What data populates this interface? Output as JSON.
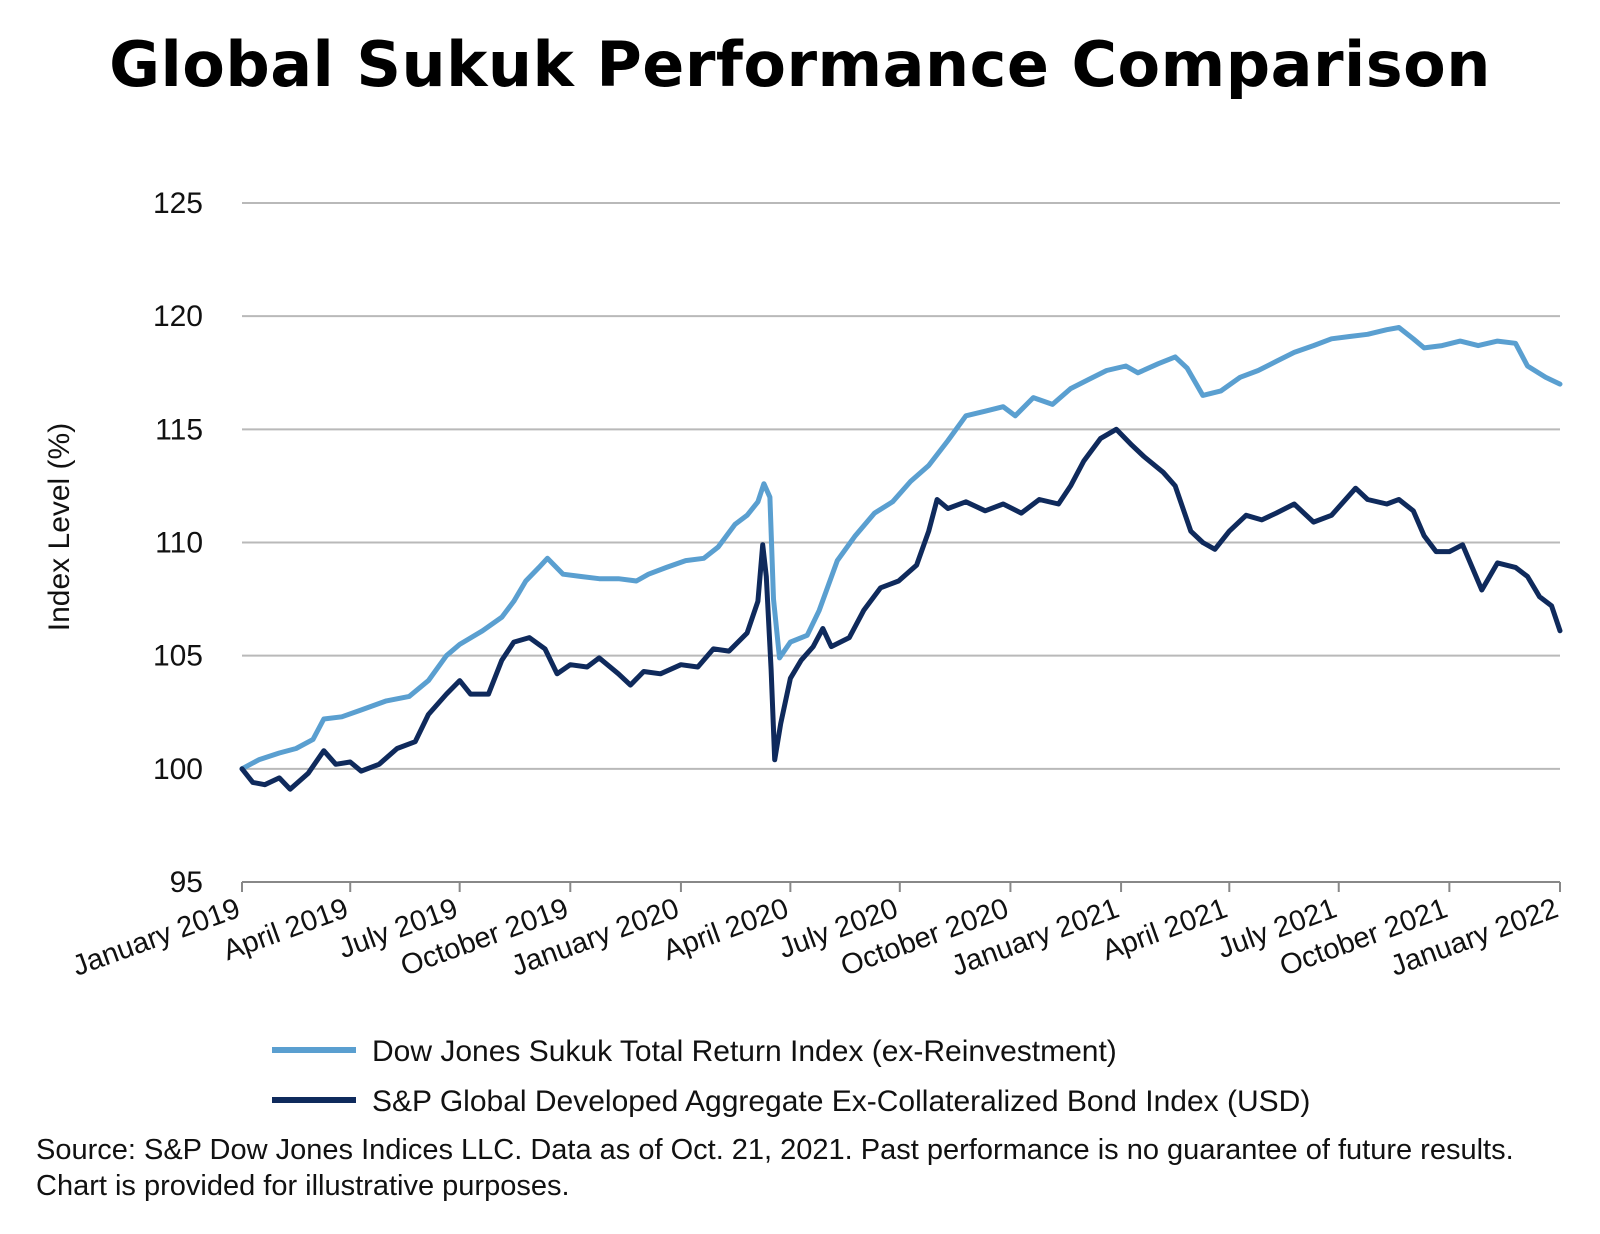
{
  "title": "Global Sukuk Performance Comparison",
  "source_note": "Source: S&P Dow Jones Indices LLC.  Data as of Oct. 21, 2021.  Past performance is no guarantee of future results.  Chart is provided for illustrative purposes.",
  "colors": {
    "series_light": "#5a9fd0",
    "series_dark": "#0f2a5c",
    "grid": "#b9b9b9",
    "axis": "#888888"
  },
  "chart_data": {
    "type": "line",
    "title": "Global Sukuk Performance Comparison",
    "ylabel": "Index Level (%)",
    "xlabel": "",
    "ylim": [
      95,
      125
    ],
    "yticks": [
      95,
      100,
      105,
      110,
      115,
      120,
      125
    ],
    "xlim": [
      "2019-01-01",
      "2022-01-01"
    ],
    "xticks": [
      "2019-01-01",
      "2019-04-01",
      "2019-07-01",
      "2019-10-01",
      "2020-01-01",
      "2020-04-01",
      "2020-07-01",
      "2020-10-01",
      "2021-01-01",
      "2021-04-01",
      "2021-07-01",
      "2021-10-01",
      "2022-01-01"
    ],
    "xtick_labels": [
      "January 2019",
      "April 2019",
      "July 2019",
      "October 2019",
      "January 2020",
      "April 2020",
      "July 2020",
      "October 2020",
      "January 2021",
      "April 2021",
      "July 2021",
      "October 2021",
      "January 2022"
    ],
    "grid": "horizontal",
    "legend_position": "bottom",
    "series": [
      {
        "name": "Dow Jones Sukuk Total Return Index (ex-Reinvestment)",
        "color": "#5a9fd0",
        "points": [
          [
            "2019-01-01",
            100.0
          ],
          [
            "2019-01-15",
            100.4
          ],
          [
            "2019-02-01",
            100.7
          ],
          [
            "2019-02-15",
            100.9
          ],
          [
            "2019-03-01",
            101.3
          ],
          [
            "2019-03-10",
            102.2
          ],
          [
            "2019-03-25",
            102.3
          ],
          [
            "2019-04-10",
            102.6
          ],
          [
            "2019-05-01",
            103.0
          ],
          [
            "2019-05-20",
            103.2
          ],
          [
            "2019-06-05",
            103.9
          ],
          [
            "2019-06-20",
            105.0
          ],
          [
            "2019-07-01",
            105.5
          ],
          [
            "2019-07-20",
            106.1
          ],
          [
            "2019-08-05",
            106.7
          ],
          [
            "2019-08-15",
            107.4
          ],
          [
            "2019-08-25",
            108.3
          ],
          [
            "2019-09-05",
            108.9
          ],
          [
            "2019-09-12",
            109.3
          ],
          [
            "2019-09-25",
            108.6
          ],
          [
            "2019-10-10",
            108.5
          ],
          [
            "2019-10-25",
            108.4
          ],
          [
            "2019-11-10",
            108.4
          ],
          [
            "2019-11-25",
            108.3
          ],
          [
            "2019-12-05",
            108.6
          ],
          [
            "2019-12-20",
            108.9
          ],
          [
            "2020-01-05",
            109.2
          ],
          [
            "2020-01-20",
            109.3
          ],
          [
            "2020-02-01",
            109.8
          ],
          [
            "2020-02-15",
            110.8
          ],
          [
            "2020-02-25",
            111.2
          ],
          [
            "2020-03-05",
            111.8
          ],
          [
            "2020-03-10",
            112.6
          ],
          [
            "2020-03-15",
            112.0
          ],
          [
            "2020-03-18",
            107.5
          ],
          [
            "2020-03-23",
            104.9
          ],
          [
            "2020-04-01",
            105.6
          ],
          [
            "2020-04-15",
            105.9
          ],
          [
            "2020-04-25",
            107.0
          ],
          [
            "2020-05-10",
            109.2
          ],
          [
            "2020-05-25",
            110.3
          ],
          [
            "2020-06-10",
            111.3
          ],
          [
            "2020-06-25",
            111.8
          ],
          [
            "2020-07-10",
            112.7
          ],
          [
            "2020-07-25",
            113.4
          ],
          [
            "2020-08-10",
            114.5
          ],
          [
            "2020-08-25",
            115.6
          ],
          [
            "2020-09-10",
            115.8
          ],
          [
            "2020-09-25",
            116.0
          ],
          [
            "2020-10-05",
            115.6
          ],
          [
            "2020-10-20",
            116.4
          ],
          [
            "2020-11-05",
            116.1
          ],
          [
            "2020-11-20",
            116.8
          ],
          [
            "2020-12-05",
            117.2
          ],
          [
            "2020-12-20",
            117.6
          ],
          [
            "2021-01-05",
            117.8
          ],
          [
            "2021-01-15",
            117.5
          ],
          [
            "2021-02-01",
            117.9
          ],
          [
            "2021-02-15",
            118.2
          ],
          [
            "2021-02-25",
            117.7
          ],
          [
            "2021-03-10",
            116.5
          ],
          [
            "2021-03-25",
            116.7
          ],
          [
            "2021-04-10",
            117.3
          ],
          [
            "2021-04-25",
            117.6
          ],
          [
            "2021-05-10",
            118.0
          ],
          [
            "2021-05-25",
            118.4
          ],
          [
            "2021-06-10",
            118.7
          ],
          [
            "2021-06-25",
            119.0
          ],
          [
            "2021-07-10",
            119.1
          ],
          [
            "2021-07-25",
            119.2
          ],
          [
            "2021-08-10",
            119.4
          ],
          [
            "2021-08-20",
            119.5
          ],
          [
            "2021-09-01",
            119.0
          ],
          [
            "2021-09-10",
            118.6
          ],
          [
            "2021-09-25",
            118.7
          ],
          [
            "2021-10-10",
            118.9
          ],
          [
            "2021-10-25",
            118.7
          ],
          [
            "2021-11-10",
            118.9
          ],
          [
            "2021-11-25",
            118.8
          ],
          [
            "2021-12-05",
            117.8
          ],
          [
            "2021-12-20",
            117.3
          ],
          [
            "2022-01-01",
            117.0
          ]
        ]
      },
      {
        "name": "S&P Global Developed Aggregate Ex-Collateralized Bond Index (USD)",
        "color": "#0f2a5c",
        "points": [
          [
            "2019-01-01",
            100.0
          ],
          [
            "2019-01-10",
            99.4
          ],
          [
            "2019-01-20",
            99.3
          ],
          [
            "2019-02-01",
            99.6
          ],
          [
            "2019-02-10",
            99.1
          ],
          [
            "2019-02-25",
            99.8
          ],
          [
            "2019-03-10",
            100.8
          ],
          [
            "2019-03-20",
            100.2
          ],
          [
            "2019-04-01",
            100.3
          ],
          [
            "2019-04-10",
            99.9
          ],
          [
            "2019-04-25",
            100.2
          ],
          [
            "2019-05-10",
            100.9
          ],
          [
            "2019-05-25",
            101.2
          ],
          [
            "2019-06-05",
            102.4
          ],
          [
            "2019-06-20",
            103.3
          ],
          [
            "2019-07-01",
            103.9
          ],
          [
            "2019-07-10",
            103.3
          ],
          [
            "2019-07-25",
            103.3
          ],
          [
            "2019-08-05",
            104.8
          ],
          [
            "2019-08-15",
            105.6
          ],
          [
            "2019-08-28",
            105.8
          ],
          [
            "2019-09-10",
            105.3
          ],
          [
            "2019-09-20",
            104.2
          ],
          [
            "2019-10-01",
            104.6
          ],
          [
            "2019-10-15",
            104.5
          ],
          [
            "2019-10-25",
            104.9
          ],
          [
            "2019-11-10",
            104.2
          ],
          [
            "2019-11-20",
            103.7
          ],
          [
            "2019-12-01",
            104.3
          ],
          [
            "2019-12-15",
            104.2
          ],
          [
            "2020-01-01",
            104.6
          ],
          [
            "2020-01-15",
            104.5
          ],
          [
            "2020-01-28",
            105.3
          ],
          [
            "2020-02-10",
            105.2
          ],
          [
            "2020-02-25",
            106.0
          ],
          [
            "2020-03-05",
            107.4
          ],
          [
            "2020-03-09",
            109.9
          ],
          [
            "2020-03-12",
            108.5
          ],
          [
            "2020-03-16",
            104.4
          ],
          [
            "2020-03-19",
            100.4
          ],
          [
            "2020-03-24",
            102.0
          ],
          [
            "2020-04-01",
            104.0
          ],
          [
            "2020-04-10",
            104.8
          ],
          [
            "2020-04-20",
            105.4
          ],
          [
            "2020-04-28",
            106.2
          ],
          [
            "2020-05-05",
            105.4
          ],
          [
            "2020-05-20",
            105.8
          ],
          [
            "2020-06-01",
            107.0
          ],
          [
            "2020-06-15",
            108.0
          ],
          [
            "2020-06-30",
            108.3
          ],
          [
            "2020-07-15",
            109.0
          ],
          [
            "2020-07-25",
            110.5
          ],
          [
            "2020-08-01",
            111.9
          ],
          [
            "2020-08-10",
            111.5
          ],
          [
            "2020-08-25",
            111.8
          ],
          [
            "2020-09-10",
            111.4
          ],
          [
            "2020-09-25",
            111.7
          ],
          [
            "2020-10-10",
            111.3
          ],
          [
            "2020-10-25",
            111.9
          ],
          [
            "2020-11-10",
            111.7
          ],
          [
            "2020-11-20",
            112.5
          ],
          [
            "2020-12-01",
            113.6
          ],
          [
            "2020-12-15",
            114.6
          ],
          [
            "2020-12-28",
            115.0
          ],
          [
            "2021-01-10",
            114.3
          ],
          [
            "2021-01-20",
            113.8
          ],
          [
            "2021-02-05",
            113.1
          ],
          [
            "2021-02-15",
            112.5
          ],
          [
            "2021-02-28",
            110.5
          ],
          [
            "2021-03-10",
            110.0
          ],
          [
            "2021-03-20",
            109.7
          ],
          [
            "2021-04-01",
            110.5
          ],
          [
            "2021-04-15",
            111.2
          ],
          [
            "2021-04-28",
            111.0
          ],
          [
            "2021-05-10",
            111.3
          ],
          [
            "2021-05-25",
            111.7
          ],
          [
            "2021-06-10",
            110.9
          ],
          [
            "2021-06-25",
            111.2
          ],
          [
            "2021-07-05",
            111.8
          ],
          [
            "2021-07-15",
            112.4
          ],
          [
            "2021-07-25",
            111.9
          ],
          [
            "2021-08-10",
            111.7
          ],
          [
            "2021-08-20",
            111.9
          ],
          [
            "2021-09-01",
            111.4
          ],
          [
            "2021-09-10",
            110.3
          ],
          [
            "2021-09-20",
            109.6
          ],
          [
            "2021-10-01",
            109.6
          ],
          [
            "2021-10-12",
            109.9
          ],
          [
            "2021-10-20",
            108.9
          ],
          [
            "2021-10-28",
            107.9
          ],
          [
            "2021-11-10",
            109.1
          ],
          [
            "2021-11-25",
            108.9
          ],
          [
            "2021-12-05",
            108.5
          ],
          [
            "2021-12-15",
            107.6
          ],
          [
            "2021-12-25",
            107.2
          ],
          [
            "2022-01-01",
            106.1
          ]
        ]
      }
    ]
  }
}
